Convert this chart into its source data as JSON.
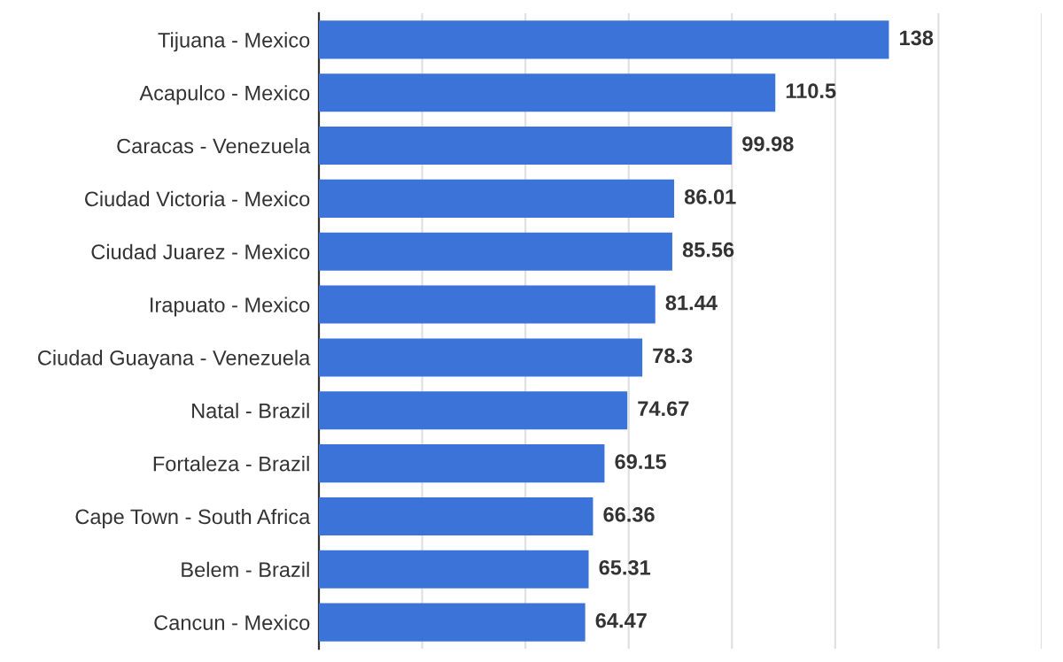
{
  "chart_data": {
    "type": "bar",
    "orientation": "horizontal",
    "categories": [
      "Tijuana - Mexico",
      "Acapulco - Mexico",
      "Caracas - Venezuela",
      "Ciudad Victoria - Mexico",
      "Ciudad Juarez - Mexico",
      "Irapuato - Mexico",
      "Ciudad Guayana - Venezuela",
      "Natal - Brazil",
      "Fortaleza - Brazil",
      "Cape Town - South Africa",
      "Belem - Brazil",
      "Cancun - Mexico"
    ],
    "values": [
      138,
      110.5,
      99.98,
      86.01,
      85.56,
      81.44,
      78.3,
      74.67,
      69.15,
      66.36,
      65.31,
      64.47
    ],
    "color": "#3c73d9",
    "xlim": [
      0,
      175
    ],
    "xticks": [
      {
        "value": 0,
        "label": null
      },
      {
        "value": 25,
        "label": null
      },
      {
        "value": 50,
        "label": null
      },
      {
        "value": 75,
        "label": null
      },
      {
        "value": 100,
        "label": null
      },
      {
        "value": 125,
        "label": null
      },
      {
        "value": 150,
        "label": null
      },
      {
        "value": 175,
        "label": null
      }
    ],
    "grid": "x",
    "tick_labels": "y",
    "data_labels": true
  }
}
